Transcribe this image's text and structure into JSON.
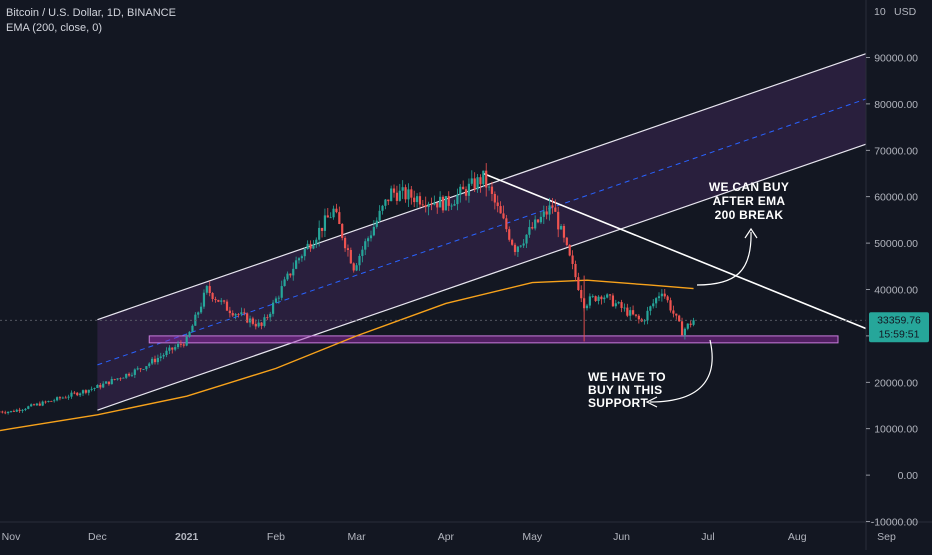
{
  "header": {
    "symbol_title": "Bitcoin / U.S. Dollar, 1D, BINANCE",
    "indicator_label": "EMA (200, close, 0)"
  },
  "axis": {
    "currency": "USD",
    "top_label": "10"
  },
  "price_badge": {
    "price": "33359.76",
    "countdown": "15:59:51",
    "color": "#26a69a"
  },
  "annotations": {
    "buy_after_ema": [
      "WE CAN BUY",
      "AFTER EMA",
      "200 BREAK"
    ],
    "buy_support": [
      "WE HAVE TO",
      "BUY IN THIS",
      "SUPPORT"
    ]
  },
  "colors": {
    "background": "#131722",
    "channel_fill": "#7b3fa0",
    "support_zone": "#9c27b0",
    "ema_line": "#f7a21b",
    "candle_up": "#26a69a",
    "candle_down": "#ef5350",
    "midline": "#2962ff"
  },
  "chart_data": {
    "type": "line",
    "title": "Bitcoin / U.S. Dollar, 1D, BINANCE",
    "xlabel": "",
    "ylabel": "",
    "x_ticks": [
      "Nov",
      "Dec",
      "2021",
      "Feb",
      "Mar",
      "Apr",
      "May",
      "Jun",
      "Jul",
      "Aug",
      "Sep"
    ],
    "y_ticks": [
      "-10000.00",
      "0.00",
      "10000.00",
      "20000.00",
      "30000.00",
      "40000.00",
      "50000.00",
      "60000.00",
      "70000.00",
      "80000.00",
      "90000.00"
    ],
    "ylim": [
      -10000,
      100000
    ],
    "last_price": 33359.76,
    "series": [
      {
        "name": "BTCUSD",
        "x": [
          "2020-11-01",
          "2020-11-15",
          "2020-12-01",
          "2020-12-16",
          "2021-01-01",
          "2021-01-08",
          "2021-01-15",
          "2021-01-27",
          "2021-02-08",
          "2021-02-21",
          "2021-02-28",
          "2021-03-13",
          "2021-04-01",
          "2021-04-14",
          "2021-04-25",
          "2021-05-08",
          "2021-05-19",
          "2021-05-25",
          "2021-06-08",
          "2021-06-15",
          "2021-06-22",
          "2021-06-26"
        ],
        "values": [
          13700,
          16000,
          19000,
          23000,
          29000,
          40000,
          36000,
          32000,
          46000,
          57000,
          45000,
          61000,
          58500,
          64000,
          49000,
          58000,
          37000,
          39000,
          33000,
          40000,
          31000,
          33360
        ]
      },
      {
        "name": "EMA (200, close, 0)",
        "x": [
          "2020-11-01",
          "2020-12-01",
          "2021-01-01",
          "2021-02-01",
          "2021-03-01",
          "2021-04-01",
          "2021-05-01",
          "2021-05-20",
          "2021-06-10",
          "2021-06-26"
        ],
        "values": [
          10000,
          13000,
          17000,
          23000,
          30000,
          37000,
          41500,
          42000,
          41000,
          40200
        ]
      }
    ],
    "drawings": {
      "support_zone": [
        28500,
        30000
      ],
      "rising_channel": {
        "lower": [
          [
            "2020-12-01",
            14000
          ],
          [
            "2021-08-28",
            72000
          ]
        ],
        "upper": [
          [
            "2020-12-01",
            33500
          ],
          [
            "2021-08-28",
            91500
          ]
        ]
      },
      "descending_trendline": [
        [
          "2021-04-14",
          65000
        ],
        [
          "2021-09-01",
          30500
        ]
      ]
    }
  }
}
